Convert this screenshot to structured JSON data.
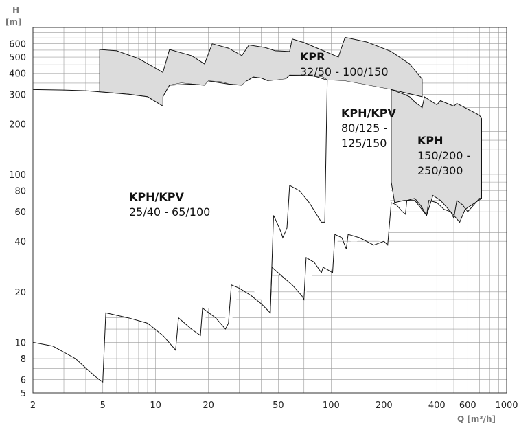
{
  "chart_data": {
    "type": "area",
    "xscale": "log",
    "yscale": "log",
    "xlim": [
      2,
      1000
    ],
    "ylim": [
      5,
      750
    ],
    "x_ticks": [
      {
        "v": 2,
        "label": "2"
      },
      {
        "v": 5,
        "label": "5"
      },
      {
        "v": 10,
        "label": "10"
      },
      {
        "v": 20,
        "label": "20"
      },
      {
        "v": 50,
        "label": "50"
      },
      {
        "v": 100,
        "label": "100"
      },
      {
        "v": 200,
        "label": "200"
      },
      {
        "v": 400,
        "label": "400"
      },
      {
        "v": 600,
        "label": "600"
      },
      {
        "v": 1000,
        "label": "1000"
      }
    ],
    "y_ticks": [
      {
        "v": 5,
        "label": "5"
      },
      {
        "v": 6,
        "label": "6"
      },
      {
        "v": 8,
        "label": "8"
      },
      {
        "v": 10,
        "label": "10"
      },
      {
        "v": 20,
        "label": "20"
      },
      {
        "v": 40,
        "label": "40"
      },
      {
        "v": 60,
        "label": "60"
      },
      {
        "v": 80,
        "label": "80"
      },
      {
        "v": 100,
        "label": "100"
      },
      {
        "v": 200,
        "label": "200"
      },
      {
        "v": 300,
        "label": "300"
      },
      {
        "v": 400,
        "label": "400"
      },
      {
        "v": 500,
        "label": "500"
      },
      {
        "v": 600,
        "label": "600"
      }
    ],
    "grid": true,
    "x_unit": "Q [m³/h]",
    "y_name": "H",
    "y_unit": "[m]",
    "series": [
      {
        "name": "KPR",
        "sub": "32/50-100/150",
        "color": "#dcdcdc",
        "points": [
          [
            4.8,
            310
          ],
          [
            4.8,
            555
          ],
          [
            6,
            545
          ],
          [
            8,
            490
          ],
          [
            11,
            405
          ],
          [
            12,
            555
          ],
          [
            16,
            510
          ],
          [
            19,
            455
          ],
          [
            21,
            600
          ],
          [
            26,
            565
          ],
          [
            31,
            510
          ],
          [
            34,
            590
          ],
          [
            42,
            570
          ],
          [
            48,
            545
          ],
          [
            58,
            540
          ],
          [
            60,
            640
          ],
          [
            70,
            610
          ],
          [
            85,
            560
          ],
          [
            110,
            500
          ],
          [
            120,
            655
          ],
          [
            160,
            615
          ],
          [
            220,
            540
          ],
          [
            280,
            455
          ],
          [
            330,
            370
          ],
          [
            330,
            290
          ],
          [
            220,
            320
          ],
          [
            150,
            345
          ],
          [
            120,
            360
          ],
          [
            95,
            365
          ],
          [
            90,
            380
          ],
          [
            80,
            385
          ],
          [
            70,
            390
          ],
          [
            58,
            390
          ],
          [
            55,
            370
          ],
          [
            44,
            360
          ],
          [
            40,
            375
          ],
          [
            36,
            380
          ],
          [
            33,
            360
          ],
          [
            31,
            340
          ],
          [
            26,
            345
          ],
          [
            24,
            355
          ],
          [
            20,
            360
          ],
          [
            19,
            340
          ],
          [
            16,
            345
          ],
          [
            14,
            350
          ],
          [
            12,
            340
          ],
          [
            11,
            290
          ],
          [
            11,
            255
          ],
          [
            9,
            290
          ],
          [
            7,
            300
          ],
          [
            5.8,
            305
          ]
        ]
      },
      {
        "name": "KPH",
        "sub": "150/200-250/300",
        "color": "#dcdcdc",
        "points": [
          [
            220,
            90
          ],
          [
            220,
            320
          ],
          [
            260,
            300
          ],
          [
            280,
            290
          ],
          [
            300,
            270
          ],
          [
            330,
            250
          ],
          [
            340,
            290
          ],
          [
            400,
            260
          ],
          [
            420,
            275
          ],
          [
            500,
            255
          ],
          [
            520,
            265
          ],
          [
            600,
            245
          ],
          [
            700,
            225
          ],
          [
            720,
            215
          ],
          [
            720,
            72
          ],
          [
            580,
            62
          ],
          [
            540,
            52
          ],
          [
            480,
            60
          ],
          [
            420,
            70
          ],
          [
            380,
            75
          ],
          [
            350,
            57
          ],
          [
            300,
            70
          ],
          [
            260,
            70
          ],
          [
            230,
            68
          ]
        ]
      },
      {
        "name": "KPH/KPV",
        "sub": "80/125-125/150",
        "color": "#ffffff",
        "points": []
      },
      {
        "name": "KPH/KPV",
        "sub": "25/40-65/100",
        "color": "#ffffff",
        "points": []
      }
    ]
  }
}
